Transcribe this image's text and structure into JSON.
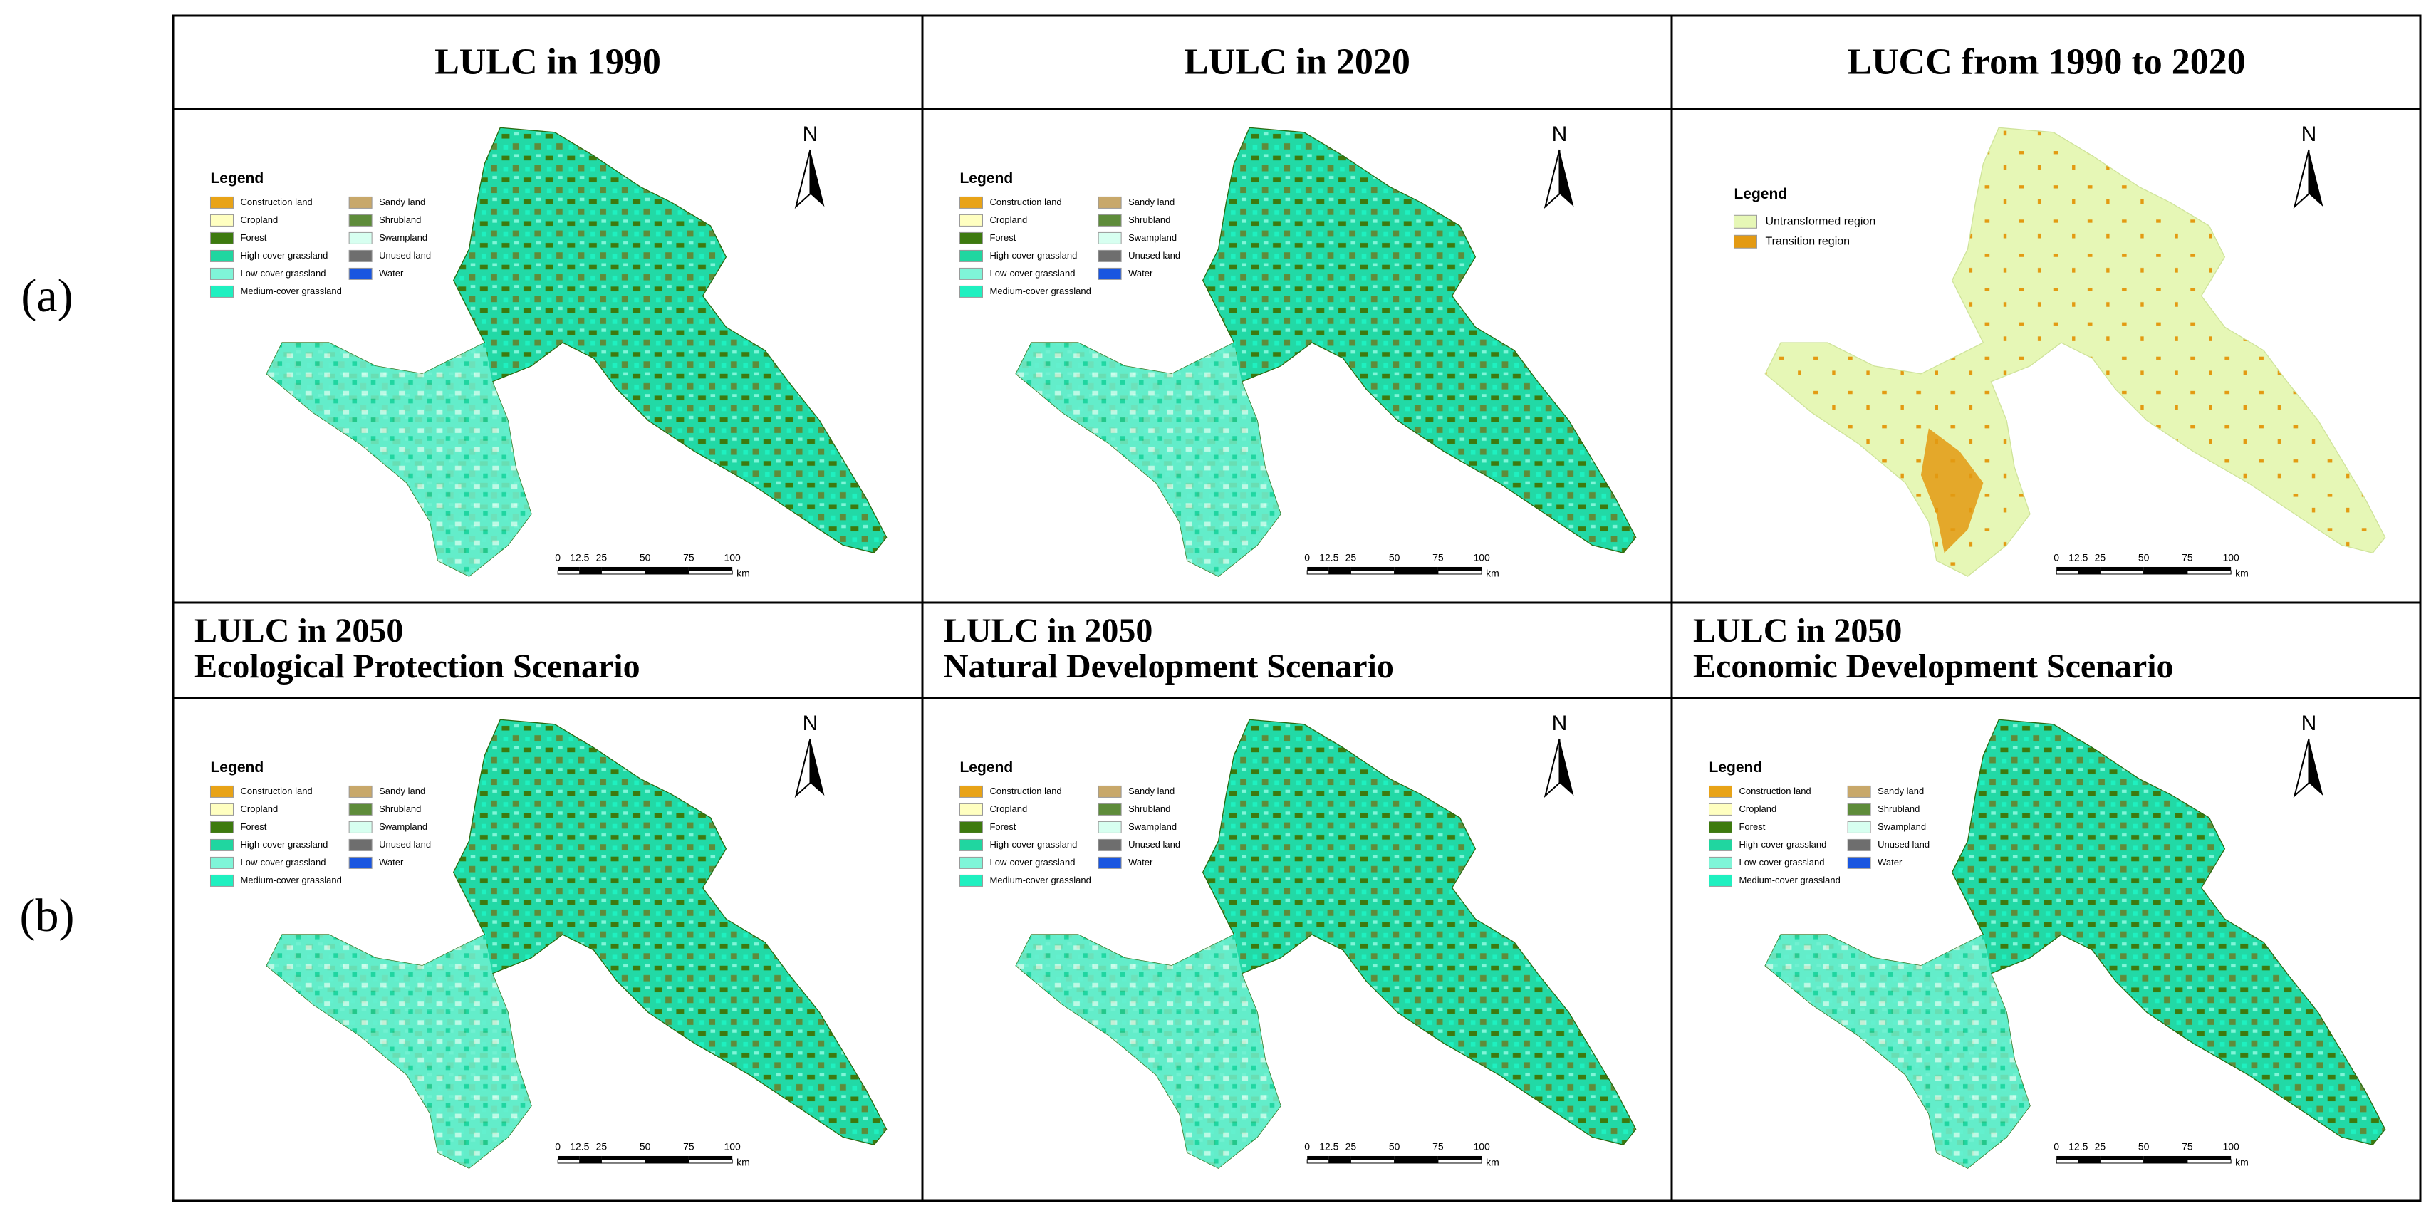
{
  "row_labels": [
    "(a)",
    "(b)"
  ],
  "panels": [
    {
      "title": [
        "LULC in 1990"
      ],
      "legend_title": "Legend",
      "legend": [
        {
          "label": "Construction land",
          "color": "#e8a317"
        },
        {
          "label": "Cropland",
          "color": "#ffffc0"
        },
        {
          "label": "Forest",
          "color": "#3d7a0e"
        },
        {
          "label": "High-cover grassland",
          "color": "#20d6a0"
        },
        {
          "label": "Low-cover grassland",
          "color": "#7ff5d8"
        },
        {
          "label": "Medium-cover grassland",
          "color": "#1ff0c0"
        },
        {
          "label": "Sandy land",
          "color": "#c8a86a"
        },
        {
          "label": "Shrubland",
          "color": "#5e8c3a"
        },
        {
          "label": "Swampland",
          "color": "#d7fff0"
        },
        {
          "label": "Unused land",
          "color": "#6e6e6e"
        },
        {
          "label": "Water",
          "color": "#1a56e0"
        }
      ],
      "north": "N",
      "scale": [
        0,
        12.5,
        25,
        50,
        75,
        100
      ],
      "scale_unit": "km"
    },
    {
      "title": [
        "LULC in 2020"
      ],
      "legend_title": "Legend",
      "legend": [
        {
          "label": "Construction land",
          "color": "#e8a317"
        },
        {
          "label": "Cropland",
          "color": "#ffffc0"
        },
        {
          "label": "Forest",
          "color": "#3d7a0e"
        },
        {
          "label": "High-cover grassland",
          "color": "#20d6a0"
        },
        {
          "label": "Low-cover grassland",
          "color": "#7ff5d8"
        },
        {
          "label": "Medium-cover grassland",
          "color": "#1ff0c0"
        },
        {
          "label": "Sandy land",
          "color": "#c8a86a"
        },
        {
          "label": "Shrubland",
          "color": "#5e8c3a"
        },
        {
          "label": "Swampland",
          "color": "#d7fff0"
        },
        {
          "label": "Unused land",
          "color": "#6e6e6e"
        },
        {
          "label": "Water",
          "color": "#1a56e0"
        }
      ],
      "north": "N",
      "scale": [
        0,
        12.5,
        25,
        50,
        75,
        100
      ],
      "scale_unit": "km"
    },
    {
      "title": [
        "LUCC from 1990 to 2020"
      ],
      "legend_title": "Legend",
      "legend": [
        {
          "label": "Untransformed region",
          "color": "#e6f7b6"
        },
        {
          "label": "Transition region",
          "color": "#e39a12"
        }
      ],
      "north": "N",
      "scale": [
        0,
        12.5,
        25,
        50,
        75,
        100
      ],
      "scale_unit": "km"
    },
    {
      "title": [
        "LULC in 2050",
        "Ecological Protection Scenario"
      ],
      "legend_title": "Legend",
      "legend": [
        {
          "label": "Construction land",
          "color": "#e8a317"
        },
        {
          "label": "Cropland",
          "color": "#ffffc0"
        },
        {
          "label": "Forest",
          "color": "#3d7a0e"
        },
        {
          "label": "High-cover grassland",
          "color": "#20d6a0"
        },
        {
          "label": "Low-cover grassland",
          "color": "#7ff5d8"
        },
        {
          "label": "Medium-cover grassland",
          "color": "#1ff0c0"
        },
        {
          "label": "Sandy land",
          "color": "#c8a86a"
        },
        {
          "label": "Shrubland",
          "color": "#5e8c3a"
        },
        {
          "label": "Swampland",
          "color": "#d7fff0"
        },
        {
          "label": "Unused land",
          "color": "#6e6e6e"
        },
        {
          "label": "Water",
          "color": "#1a56e0"
        }
      ],
      "north": "N",
      "scale": [
        0,
        12.5,
        25,
        50,
        75,
        100
      ],
      "scale_unit": "km"
    },
    {
      "title": [
        "LULC in 2050",
        "Natural Development Scenario"
      ],
      "legend_title": "Legend",
      "legend": [
        {
          "label": "Construction land",
          "color": "#e8a317"
        },
        {
          "label": "Cropland",
          "color": "#ffffc0"
        },
        {
          "label": "Forest",
          "color": "#3d7a0e"
        },
        {
          "label": "High-cover grassland",
          "color": "#20d6a0"
        },
        {
          "label": "Low-cover grassland",
          "color": "#7ff5d8"
        },
        {
          "label": "Medium-cover grassland",
          "color": "#1ff0c0"
        },
        {
          "label": "Sandy land",
          "color": "#c8a86a"
        },
        {
          "label": "Shrubland",
          "color": "#5e8c3a"
        },
        {
          "label": "Swampland",
          "color": "#d7fff0"
        },
        {
          "label": "Unused land",
          "color": "#6e6e6e"
        },
        {
          "label": "Water",
          "color": "#1a56e0"
        }
      ],
      "north": "N",
      "scale": [
        0,
        12.5,
        25,
        50,
        75,
        100
      ],
      "scale_unit": "km"
    },
    {
      "title": [
        "LULC in 2050",
        "Economic Development Scenario"
      ],
      "legend_title": "Legend",
      "legend": [
        {
          "label": "Construction land",
          "color": "#e8a317"
        },
        {
          "label": "Cropland",
          "color": "#ffffc0"
        },
        {
          "label": "Forest",
          "color": "#3d7a0e"
        },
        {
          "label": "High-cover grassland",
          "color": "#20d6a0"
        },
        {
          "label": "Low-cover grassland",
          "color": "#7ff5d8"
        },
        {
          "label": "Medium-cover grassland",
          "color": "#1ff0c0"
        },
        {
          "label": "Sandy land",
          "color": "#c8a86a"
        },
        {
          "label": "Shrubland",
          "color": "#5e8c3a"
        },
        {
          "label": "Swampland",
          "color": "#d7fff0"
        },
        {
          "label": "Unused land",
          "color": "#6e6e6e"
        },
        {
          "label": "Water",
          "color": "#1a56e0"
        }
      ],
      "north": "N",
      "scale": [
        0,
        12.5,
        25,
        50,
        75,
        100
      ],
      "scale_unit": "km"
    }
  ]
}
